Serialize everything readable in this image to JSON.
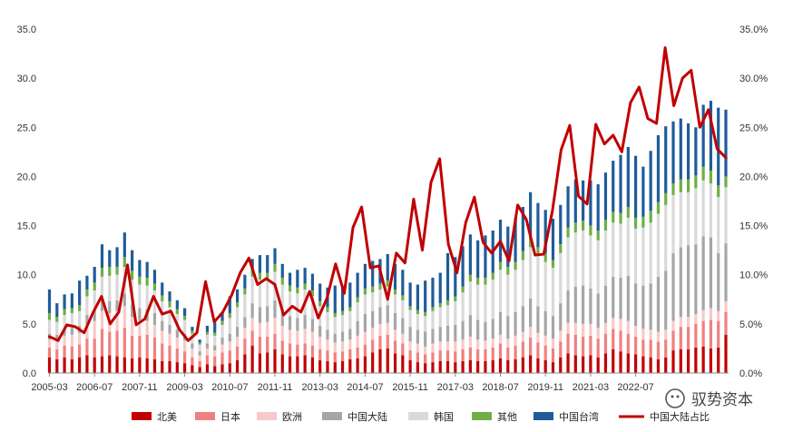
{
  "chart_data": {
    "type": "bar",
    "stacked": true,
    "title": "",
    "xlabel": "",
    "ylabel": "",
    "ylim": [
      0,
      35
    ],
    "y2lim": [
      0,
      35
    ],
    "yticks": [
      "0.0",
      "5.0",
      "10.0",
      "15.0",
      "20.0",
      "25.0",
      "30.0",
      "35.0"
    ],
    "y2ticks": [
      "0.0%",
      "5.0%",
      "10.0%",
      "15.0%",
      "20.0%",
      "25.0%",
      "30.0%",
      "35.0%"
    ],
    "xtick_labels": [
      "2005-03",
      "2006-07",
      "2007-11",
      "2009-03",
      "2010-07",
      "2011-11",
      "2013-03",
      "2014-07",
      "2015-11",
      "2017-03",
      "2018-07",
      "2019-11",
      "2021-03",
      "2022-07"
    ],
    "grid": false,
    "legend_position": "bottom",
    "series": [
      {
        "name": "北美",
        "color": "#C00000",
        "values": [
          1.6,
          1.4,
          1.6,
          1.4,
          1.6,
          1.8,
          1.6,
          1.7,
          1.8,
          1.7,
          1.6,
          1.5,
          1.6,
          1.5,
          1.4,
          1.2,
          1.2,
          1.1,
          1.0,
          0.8,
          0.6,
          0.9,
          0.7,
          0.9,
          1.0,
          1.3,
          1.9,
          2.8,
          2.0,
          2.1,
          2.4,
          1.9,
          1.7,
          1.7,
          1.8,
          1.6,
          1.3,
          1.2,
          1.1,
          1.2,
          1.4,
          1.5,
          1.7,
          2.1,
          2.4,
          2.5,
          2.0,
          1.8,
          1.3,
          1.1,
          1.0,
          1.1,
          1.2,
          1.2,
          1.1,
          1.2,
          1.3,
          1.2,
          1.2,
          1.3,
          1.5,
          1.3,
          1.4,
          1.6,
          1.8,
          1.5,
          1.3,
          1.1,
          1.6,
          2.0,
          1.8,
          1.7,
          1.8,
          1.6,
          2.0,
          2.4,
          2.2,
          2.0,
          1.9,
          1.7,
          1.6,
          1.4,
          1.6,
          2.3,
          2.4,
          2.4,
          2.6,
          2.7,
          2.5,
          2.6,
          3.9
        ]
      },
      {
        "name": "日本",
        "color": "#F08080",
        "values": [
          1.0,
          1.0,
          1.2,
          1.3,
          1.3,
          1.7,
          1.9,
          2.8,
          2.4,
          2.6,
          3.0,
          2.3,
          2.2,
          2.4,
          2.2,
          1.8,
          1.6,
          1.4,
          1.2,
          0.8,
          0.6,
          0.9,
          1.0,
          1.2,
          1.3,
          1.4,
          1.6,
          1.5,
          1.7,
          1.6,
          1.6,
          1.4,
          1.3,
          1.2,
          1.2,
          1.2,
          1.1,
          1.1,
          1.0,
          1.0,
          1.0,
          1.1,
          1.2,
          1.3,
          1.4,
          1.4,
          1.3,
          1.2,
          1.0,
          1.0,
          0.9,
          1.0,
          1.1,
          1.1,
          1.1,
          1.2,
          1.3,
          1.2,
          1.2,
          1.3,
          1.5,
          1.3,
          1.4,
          1.6,
          1.8,
          1.6,
          1.5,
          1.4,
          1.6,
          2.0,
          2.1,
          2.0,
          2.0,
          1.9,
          2.0,
          2.1,
          2.1,
          2.0,
          1.8,
          1.7,
          1.8,
          1.8,
          1.8,
          2.0,
          2.3,
          2.3,
          2.4,
          2.6,
          2.9,
          2.7,
          2.3
        ]
      },
      {
        "name": "欧洲",
        "color": "#F9C9C9",
        "values": [
          0.8,
          0.9,
          1.0,
          1.2,
          1.2,
          1.5,
          1.8,
          1.8,
          1.9,
          2.0,
          2.2,
          1.9,
          1.6,
          1.4,
          1.3,
          1.3,
          1.2,
          1.1,
          1.1,
          0.9,
          0.6,
          0.7,
          0.6,
          0.8,
          0.9,
          1.0,
          1.1,
          1.3,
          1.4,
          1.5,
          1.6,
          1.5,
          1.4,
          1.4,
          1.5,
          1.4,
          1.3,
          1.1,
          1.0,
          1.0,
          1.0,
          1.2,
          1.3,
          1.2,
          1.2,
          1.2,
          1.1,
          1.0,
          0.9,
          0.9,
          0.8,
          0.9,
          0.9,
          0.9,
          1.0,
          1.0,
          1.1,
          1.0,
          0.9,
          0.9,
          0.9,
          0.9,
          1.0,
          1.0,
          1.1,
          1.0,
          1.0,
          1.0,
          1.1,
          1.1,
          1.2,
          1.3,
          1.2,
          1.1,
          1.1,
          1.1,
          1.2,
          1.3,
          1.1,
          1.1,
          1.0,
          1.0,
          1.0,
          1.0,
          1.0,
          1.0,
          1.0,
          1.1,
          1.2,
          1.0,
          1.1
        ]
      },
      {
        "name": "中国大陆",
        "color": "#A6A6A6",
        "values": [
          0.6,
          0.6,
          0.7,
          0.7,
          0.7,
          0.9,
          1.0,
          1.1,
          1.2,
          1.1,
          1.3,
          1.3,
          1.2,
          1.2,
          1.2,
          1.0,
          0.9,
          0.8,
          0.7,
          0.5,
          0.4,
          0.5,
          0.5,
          0.7,
          0.8,
          1.0,
          1.1,
          1.5,
          1.6,
          1.6,
          1.8,
          1.5,
          1.4,
          1.3,
          1.4,
          1.3,
          1.1,
          1.0,
          0.9,
          1.0,
          1.1,
          1.5,
          1.8,
          1.7,
          1.7,
          1.8,
          1.7,
          1.6,
          1.5,
          1.4,
          1.5,
          1.5,
          1.5,
          1.6,
          1.7,
          1.9,
          2.2,
          2.0,
          1.9,
          2.0,
          2.3,
          2.3,
          2.4,
          2.6,
          2.9,
          2.7,
          2.5,
          2.3,
          2.8,
          3.3,
          3.7,
          3.9,
          3.6,
          3.5,
          3.8,
          4.2,
          4.2,
          4.6,
          4.3,
          4.4,
          4.7,
          5.6,
          6.0,
          6.9,
          7.1,
          7.3,
          7.1,
          7.5,
          7.2,
          5.9,
          5.9
        ]
      },
      {
        "name": "韩国",
        "color": "#D9D9D9",
        "values": [
          1.4,
          1.3,
          1.4,
          1.5,
          1.5,
          1.9,
          2.1,
          2.4,
          2.6,
          2.6,
          2.7,
          2.5,
          2.4,
          2.4,
          2.3,
          2.0,
          1.8,
          1.6,
          1.4,
          1.0,
          0.7,
          0.9,
          1.0,
          1.3,
          1.6,
          2.0,
          2.3,
          2.7,
          2.8,
          2.7,
          2.9,
          2.7,
          2.5,
          2.5,
          2.6,
          2.3,
          2.0,
          1.8,
          1.7,
          1.7,
          1.8,
          1.9,
          2.0,
          1.9,
          1.8,
          1.9,
          1.9,
          1.8,
          1.7,
          1.6,
          1.6,
          1.8,
          2.0,
          2.1,
          2.4,
          2.9,
          3.4,
          3.6,
          3.8,
          4.0,
          4.3,
          4.2,
          4.3,
          4.7,
          5.2,
          5.1,
          5.0,
          4.9,
          5.1,
          5.4,
          5.5,
          5.6,
          5.4,
          5.4,
          5.6,
          5.5,
          5.5,
          5.9,
          5.6,
          5.9,
          6.2,
          6.4,
          6.7,
          5.9,
          5.6,
          5.4,
          5.7,
          5.7,
          5.5,
          5.7,
          5.7
        ]
      },
      {
        "name": "其他",
        "color": "#70AD47",
        "values": [
          0.7,
          0.5,
          0.6,
          0.5,
          0.6,
          0.7,
          0.8,
          0.9,
          0.9,
          0.8,
          1.0,
          0.9,
          0.8,
          0.8,
          0.7,
          0.6,
          0.6,
          0.5,
          0.4,
          0.3,
          0.2,
          0.3,
          0.3,
          0.4,
          0.5,
          0.5,
          0.6,
          0.7,
          0.7,
          0.7,
          0.8,
          0.7,
          0.6,
          0.6,
          0.6,
          0.6,
          0.5,
          0.5,
          0.4,
          0.4,
          0.4,
          0.5,
          0.6,
          0.6,
          0.6,
          0.6,
          0.5,
          0.5,
          0.4,
          0.4,
          0.4,
          0.4,
          0.4,
          0.5,
          0.5,
          0.6,
          0.7,
          0.7,
          0.7,
          0.7,
          0.8,
          0.8,
          0.8,
          0.9,
          1.0,
          0.9,
          0.9,
          0.8,
          0.9,
          1.0,
          1.0,
          1.0,
          1.0,
          1.0,
          1.1,
          1.1,
          1.1,
          1.1,
          1.1,
          1.1,
          1.2,
          1.2,
          1.2,
          1.2,
          1.3,
          1.3,
          1.3,
          1.4,
          1.3,
          1.2,
          1.1
        ]
      },
      {
        "name": "中国台湾",
        "color": "#1F5C99",
        "values": [
          2.4,
          1.4,
          1.5,
          1.5,
          2.5,
          1.4,
          1.6,
          2.4,
          1.7,
          2.0,
          2.5,
          2.1,
          1.7,
          1.6,
          1.4,
          1.3,
          1.0,
          0.9,
          0.8,
          0.4,
          0.3,
          0.6,
          1.1,
          0.9,
          1.7,
          1.3,
          1.4,
          1.1,
          1.8,
          1.8,
          1.6,
          1.4,
          1.3,
          1.8,
          1.6,
          1.7,
          1.8,
          2.0,
          2.8,
          2.5,
          2.5,
          2.5,
          2.5,
          2.6,
          2.5,
          2.7,
          2.6,
          2.6,
          2.4,
          2.6,
          3.2,
          3.0,
          3.1,
          4.8,
          4.0,
          4.1,
          4.1,
          3.8,
          4.3,
          4.3,
          4.3,
          4.1,
          4.5,
          4.5,
          4.6,
          4.5,
          4.4,
          4.2,
          4.0,
          4.2,
          4.4,
          4.1,
          4.6,
          4.7,
          4.8,
          5.2,
          5.9,
          6.1,
          6.3,
          5.1,
          6.1,
          6.8,
          6.8,
          6.3,
          6.2,
          5.7,
          4.9,
          6.3,
          7.1,
          7.9,
          6.8
        ]
      }
    ],
    "line_series": {
      "name": "中国大陆占比",
      "color": "#C00000",
      "axis": "right",
      "values": [
        3.7,
        3.3,
        4.9,
        4.7,
        4.1,
        6.1,
        7.8,
        5.0,
        6.2,
        11.0,
        4.9,
        5.5,
        7.8,
        6.0,
        6.3,
        4.4,
        3.3,
        4.1,
        9.3,
        5.2,
        6.2,
        7.9,
        10.2,
        11.7,
        9.0,
        9.6,
        9.0,
        5.9,
        6.8,
        6.2,
        8.3,
        5.6,
        7.6,
        11.1,
        8.1,
        14.8,
        16.9,
        10.7,
        10.9,
        7.5,
        12.2,
        11.2,
        17.7,
        12.5,
        19.4,
        21.8,
        13.1,
        10.2,
        15.3,
        17.9,
        13.3,
        12.2,
        13.4,
        11.4,
        17.1,
        15.6,
        12.0,
        12.1,
        16.5,
        22.7,
        25.2,
        18.0,
        17.2,
        25.3,
        23.3,
        24.2,
        22.5,
        27.5,
        29.1,
        25.9,
        25.4,
        33.1,
        27.2,
        30.0,
        30.8,
        25.0,
        26.8,
        22.8,
        21.9
      ]
    },
    "legend": [
      "北美",
      "日本",
      "欧洲",
      "中国大陆",
      "韩国",
      "其他",
      "中国台湾",
      "中国大陆占比"
    ],
    "watermark": "驭势资本"
  }
}
